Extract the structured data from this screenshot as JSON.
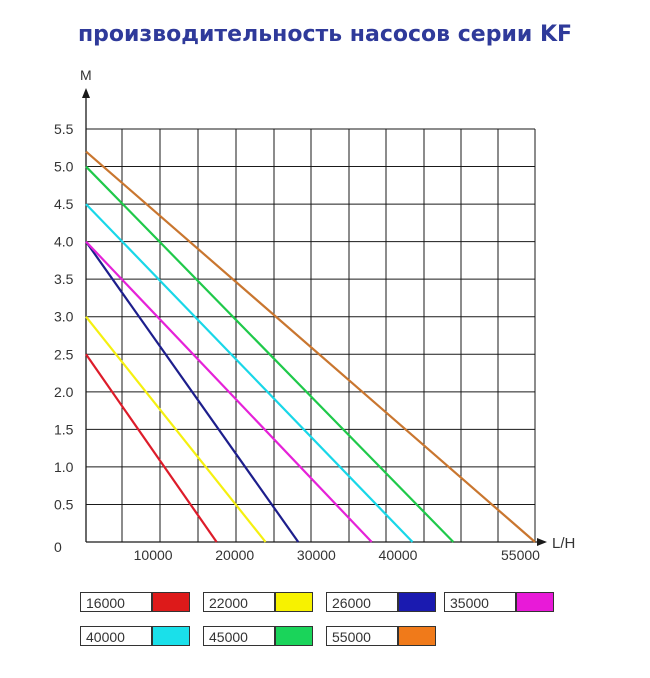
{
  "title": "производительность насосов серии  KF",
  "chart_data": {
    "type": "line",
    "xlabel": "L/H",
    "ylabel": "M",
    "xlim": [
      0,
      55000
    ],
    "ylim": [
      0,
      5.5
    ],
    "x_ticks": [
      10000,
      20000,
      30000,
      40000,
      55000
    ],
    "y_ticks": [
      0,
      0.5,
      1.0,
      1.5,
      2.0,
      2.5,
      3.0,
      3.5,
      4.0,
      4.5,
      5.0,
      5.5
    ],
    "y_tick_labels": [
      "0",
      "0.5",
      "1.0",
      "1.5",
      "2.0",
      "2.5",
      "3.0",
      "3.5",
      "4.0",
      "4.5",
      "5.0",
      "5.5"
    ],
    "grid": true,
    "series": [
      {
        "name": "16000",
        "color": "#dd1c2a",
        "points": [
          [
            0,
            2.5
          ],
          [
            16000,
            0
          ]
        ]
      },
      {
        "name": "22000",
        "color": "#f5f010",
        "points": [
          [
            0,
            3.0
          ],
          [
            22000,
            0
          ]
        ]
      },
      {
        "name": "26000",
        "color": "#1d1e8c",
        "points": [
          [
            0,
            4.0
          ],
          [
            26000,
            0
          ]
        ]
      },
      {
        "name": "35000",
        "color": "#e522d8",
        "points": [
          [
            0,
            4.0
          ],
          [
            35000,
            0
          ]
        ]
      },
      {
        "name": "40000",
        "color": "#19d7e8",
        "points": [
          [
            0,
            4.5
          ],
          [
            40000,
            0
          ]
        ]
      },
      {
        "name": "45000",
        "color": "#1fc94a",
        "points": [
          [
            0,
            5.0
          ],
          [
            45000,
            0
          ]
        ]
      },
      {
        "name": "55000",
        "color": "#c9762f",
        "points": [
          [
            0,
            5.2
          ],
          [
            55000,
            0
          ]
        ]
      }
    ],
    "legend": [
      {
        "label": "16000",
        "color": "#dd1a1a"
      },
      {
        "label": "22000",
        "color": "#f7f200"
      },
      {
        "label": "26000",
        "color": "#1a1ab0"
      },
      {
        "label": "35000",
        "color": "#e81ad8"
      },
      {
        "label": "40000",
        "color": "#1ae0ea"
      },
      {
        "label": "45000",
        "color": "#1ad45a"
      },
      {
        "label": "55000",
        "color": "#f07a1a"
      }
    ]
  }
}
